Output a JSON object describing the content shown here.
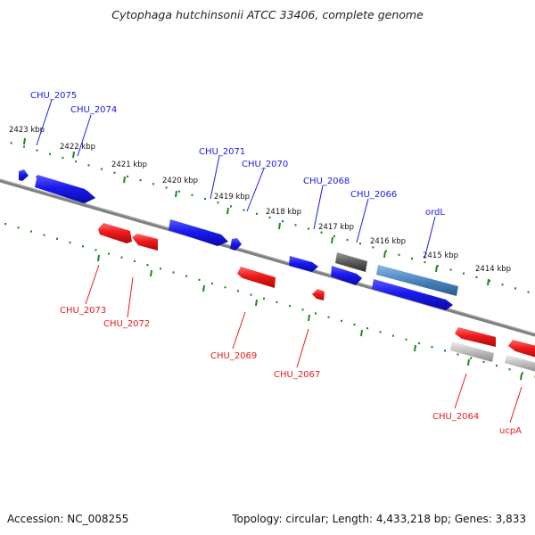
{
  "title": "Cytophaga hutchinsonii ATCC 33406, complete genome",
  "accession": "Accession: NC_008255",
  "stats": "Topology: circular; Length: 4,433,218 bp; Genes: 3,833",
  "colors": {
    "forward_gene": "#1a1aee",
    "reverse_gene": "#ee1a1a",
    "rna_gene": "#4a86c0",
    "other_gene": "#6a6a6a",
    "pseudo_gene": "#b8b8b8",
    "backbone": "#777777",
    "tick": "#1a8a1a"
  },
  "kbp_labels": [
    "2423 kbp",
    "2422 kbp",
    "2421 kbp",
    "2420 kbp",
    "2419 kbp",
    "2418 kbp",
    "2417 kbp",
    "2416 kbp",
    "2415 kbp",
    "2414 kbp"
  ],
  "forward_labels": [
    "CHU_2075",
    "CHU_2074",
    "CHU_2071",
    "CHU_2070",
    "CHU_2068",
    "CHU_2066",
    "ordL"
  ],
  "reverse_labels": [
    "CHU_2073",
    "CHU_2072",
    "CHU_2069",
    "CHU_2067",
    "CHU_2064",
    "ucpA"
  ]
}
